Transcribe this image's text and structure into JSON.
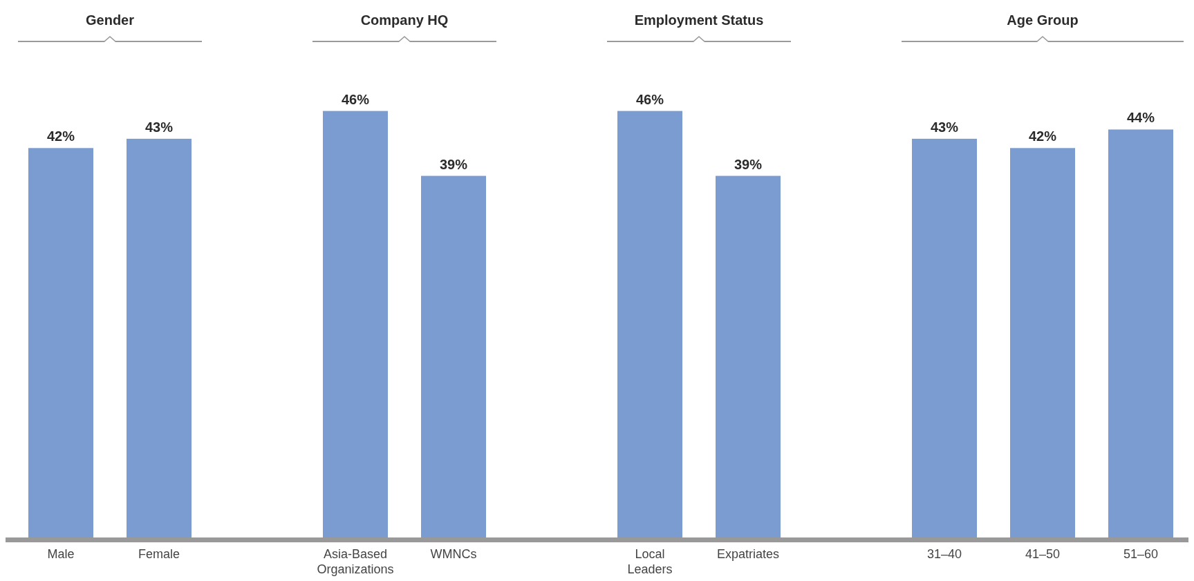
{
  "chart_data": [
    {
      "type": "bar",
      "title": "Gender",
      "categories": [
        "Male",
        "Female"
      ],
      "values": [
        42,
        43
      ],
      "value_labels": [
        "42%",
        "43%"
      ],
      "color": "#7a9cd1"
    },
    {
      "type": "bar",
      "title": "Company HQ",
      "categories": [
        "Asia-Based Organizations",
        "WMNCs"
      ],
      "values": [
        46,
        39
      ],
      "value_labels": [
        "46%",
        "39%"
      ],
      "color": "#7a9cd1"
    },
    {
      "type": "bar",
      "title": "Employment Status",
      "categories": [
        "Local Leaders",
        "Expatriates"
      ],
      "values": [
        46,
        39
      ],
      "value_labels": [
        "46%",
        "39%"
      ],
      "color": "#7a9cd1"
    },
    {
      "type": "bar",
      "title": "Age Group",
      "categories": [
        "31–40",
        "41–50",
        "51–60"
      ],
      "values": [
        43,
        42,
        44
      ],
      "value_labels": [
        "43%",
        "42%",
        "44%"
      ],
      "color": "#7a9cd1"
    }
  ]
}
